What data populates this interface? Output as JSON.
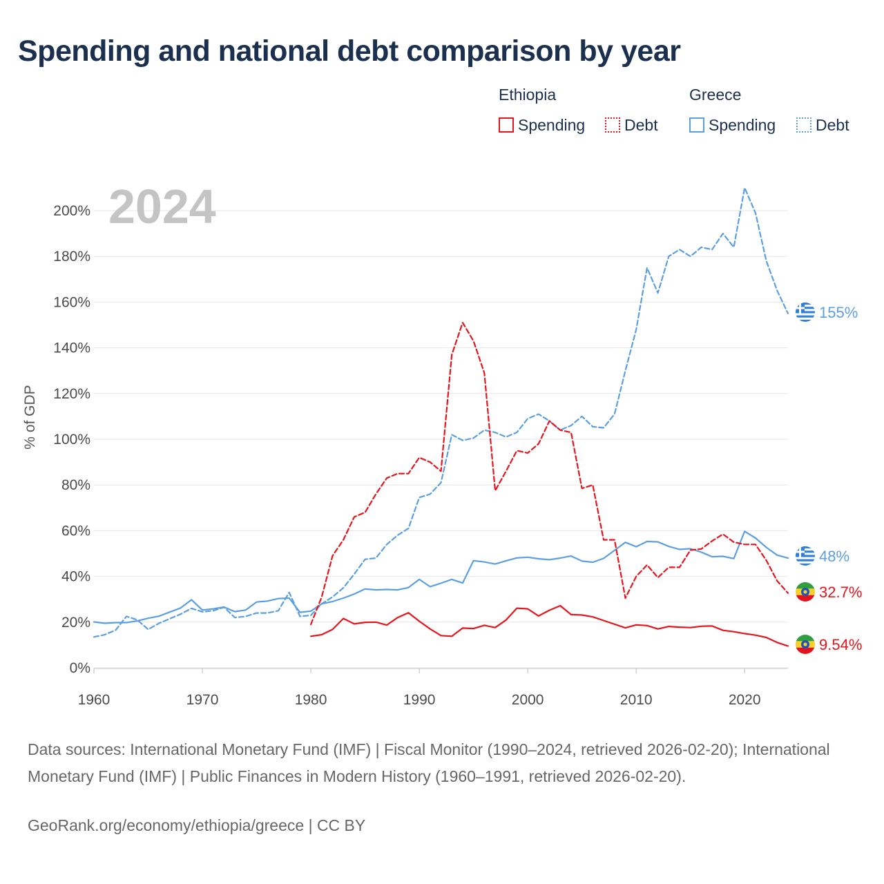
{
  "title": "Spending and national debt comparison by year",
  "legend": {
    "groups": [
      {
        "name": "Ethiopia",
        "spending_label": "Spending",
        "debt_label": "Debt"
      },
      {
        "name": "Greece",
        "spending_label": "Spending",
        "debt_label": "Debt"
      }
    ]
  },
  "colors": {
    "ethiopia": "#e8141c",
    "greece": "#5b9fe0",
    "title": "#1b2f4e",
    "grid": "#e6e6e6"
  },
  "flags": [
    {
      "country": "Greece",
      "icon": "greece-flag-icon"
    },
    {
      "country": "Ethiopia",
      "icon": "ethiopia-flag-icon"
    }
  ],
  "chart_data": {
    "type": "line",
    "year_label": "2024",
    "ylabel": "% of GDP",
    "xlabel": "",
    "xlim": [
      1960,
      2024
    ],
    "ylim": [
      0,
      210
    ],
    "x_ticks": [
      1960,
      1970,
      1980,
      1990,
      2000,
      2010,
      2020
    ],
    "x_tick_labels": [
      "1960",
      "1970",
      "1980",
      "1990",
      "2000",
      "2010",
      "2020"
    ],
    "y_ticks": [
      0,
      20,
      40,
      60,
      80,
      100,
      120,
      140,
      160,
      180,
      200
    ],
    "y_tick_labels": [
      "0%",
      "20%",
      "40%",
      "60%",
      "80%",
      "100%",
      "120%",
      "140%",
      "160%",
      "180%",
      "200%"
    ],
    "grid": true,
    "series": [
      {
        "name": "Ethiopia Spending",
        "country": "Ethiopia",
        "metric": "Spending",
        "style": "solid",
        "end_label": "9.54%",
        "x": [
          1980,
          1981,
          1982,
          1983,
          1984,
          1985,
          1986,
          1987,
          1988,
          1989,
          1990,
          1991,
          1992,
          1993,
          1994,
          1995,
          1996,
          1997,
          1998,
          1999,
          2000,
          2001,
          2002,
          2003,
          2004,
          2005,
          2006,
          2007,
          2008,
          2009,
          2010,
          2011,
          2012,
          2013,
          2014,
          2015,
          2016,
          2017,
          2018,
          2019,
          2020,
          2021,
          2022,
          2023,
          2024
        ],
        "values": [
          13.8,
          14.5,
          16.8,
          21.6,
          19.2,
          19.9,
          20,
          18.7,
          22,
          24.1,
          20.4,
          17,
          14.1,
          13.8,
          17.4,
          17.2,
          18.6,
          17.6,
          20.9,
          26.1,
          25.8,
          22.7,
          25.2,
          27.2,
          23.3,
          23.1,
          22.3,
          20.7,
          19.1,
          17.5,
          18.8,
          18.5,
          17,
          18.1,
          17.8,
          17.6,
          18.2,
          18.3,
          16.4,
          15.8,
          15,
          14.3,
          13.3,
          11.1,
          9.54
        ]
      },
      {
        "name": "Ethiopia Debt",
        "country": "Ethiopia",
        "metric": "Debt",
        "style": "dashed",
        "end_label": "32.7%",
        "x": [
          1980,
          1981,
          1982,
          1983,
          1984,
          1985,
          1986,
          1987,
          1988,
          1989,
          1990,
          1991,
          1992,
          1993,
          1994,
          1995,
          1996,
          1997,
          1998,
          1999,
          2000,
          2001,
          2002,
          2003,
          2004,
          2005,
          2006,
          2007,
          2008,
          2009,
          2010,
          2011,
          2012,
          2013,
          2014,
          2015,
          2016,
          2017,
          2018,
          2019,
          2020,
          2021,
          2022,
          2023,
          2024
        ],
        "values": [
          19,
          31,
          49,
          56,
          66,
          68,
          76,
          83,
          85,
          85,
          92,
          90,
          86,
          137,
          151,
          143,
          129,
          77.5,
          86,
          95,
          94,
          98,
          108,
          104,
          103,
          78.5,
          80,
          56,
          56,
          30.5,
          40,
          45,
          39.5,
          44,
          44,
          51.5,
          52,
          55.5,
          58.5,
          55,
          54,
          54,
          47,
          38,
          32.7
        ]
      },
      {
        "name": "Greece Spending",
        "country": "Greece",
        "metric": "Spending",
        "style": "solid",
        "end_label": "48%",
        "x": [
          1960,
          1961,
          1962,
          1963,
          1964,
          1965,
          1966,
          1967,
          1968,
          1969,
          1970,
          1971,
          1972,
          1973,
          1974,
          1975,
          1976,
          1977,
          1978,
          1979,
          1980,
          1981,
          1982,
          1983,
          1984,
          1985,
          1986,
          1987,
          1988,
          1989,
          1990,
          1991,
          1992,
          1993,
          1994,
          1995,
          1996,
          1997,
          1998,
          1999,
          2000,
          2001,
          2002,
          2003,
          2004,
          2005,
          2006,
          2007,
          2008,
          2009,
          2010,
          2011,
          2012,
          2013,
          2014,
          2015,
          2016,
          2017,
          2018,
          2019,
          2020,
          2021,
          2022,
          2023,
          2024
        ],
        "values": [
          20.1,
          19.5,
          19.8,
          19.8,
          20.5,
          21.7,
          22.6,
          24.4,
          26.2,
          29.8,
          25.3,
          25.8,
          26.6,
          24.6,
          25.3,
          28.8,
          29.2,
          30.3,
          30.5,
          24.3,
          24.8,
          28,
          29,
          30.5,
          32.3,
          34.5,
          34.1,
          34.3,
          34.1,
          35.1,
          38.7,
          35.5,
          37,
          38.7,
          37.1,
          46.9,
          46.3,
          45.4,
          46.8,
          48.1,
          48.4,
          47.7,
          47.3,
          48,
          48.9,
          46.7,
          46.2,
          47.9,
          51.4,
          54.9,
          53,
          55.3,
          55.1,
          53.1,
          51.8,
          52.1,
          50.6,
          48.6,
          48.8,
          47.8,
          59.7,
          56.8,
          52.7,
          49.3,
          48
        ]
      },
      {
        "name": "Greece Debt",
        "country": "Greece",
        "metric": "Debt",
        "style": "dashed",
        "end_label": "155%",
        "x": [
          1960,
          1961,
          1962,
          1963,
          1964,
          1965,
          1966,
          1967,
          1968,
          1969,
          1970,
          1971,
          1972,
          1973,
          1974,
          1975,
          1976,
          1977,
          1978,
          1979,
          1980,
          1981,
          1982,
          1983,
          1984,
          1985,
          1986,
          1987,
          1988,
          1989,
          1990,
          1991,
          1992,
          1993,
          1994,
          1995,
          1996,
          1997,
          1998,
          1999,
          2000,
          2001,
          2002,
          2003,
          2004,
          2005,
          2006,
          2007,
          2008,
          2009,
          2010,
          2011,
          2012,
          2013,
          2014,
          2015,
          2016,
          2017,
          2018,
          2019,
          2020,
          2021,
          2022,
          2023,
          2024
        ],
        "values": [
          13.5,
          14.5,
          16.5,
          22.5,
          21,
          16.8,
          19.5,
          21.5,
          23.5,
          26,
          24.5,
          25,
          26.5,
          22,
          22.5,
          24,
          24,
          25,
          33,
          22.5,
          23,
          28,
          31,
          35,
          41,
          47.5,
          48,
          54,
          58,
          61,
          74.5,
          76,
          81,
          102,
          99.5,
          100.5,
          104,
          103,
          101,
          103,
          109,
          111,
          108,
          104,
          106,
          110,
          105.5,
          105,
          111,
          130,
          148,
          175,
          164,
          180,
          183,
          180,
          184,
          183,
          190,
          184,
          210,
          199,
          178,
          165,
          155
        ]
      }
    ]
  },
  "footer": {
    "sources": "Data sources: International Monetary Fund (IMF) | Fiscal Monitor (1990–2024, retrieved 2026-02-20); International Monetary Fund (IMF) | Public Finances in Modern History (1960–1991, retrieved 2026-02-20).",
    "credit": "GeoRank.org/economy/ethiopia/greece | CC BY"
  }
}
